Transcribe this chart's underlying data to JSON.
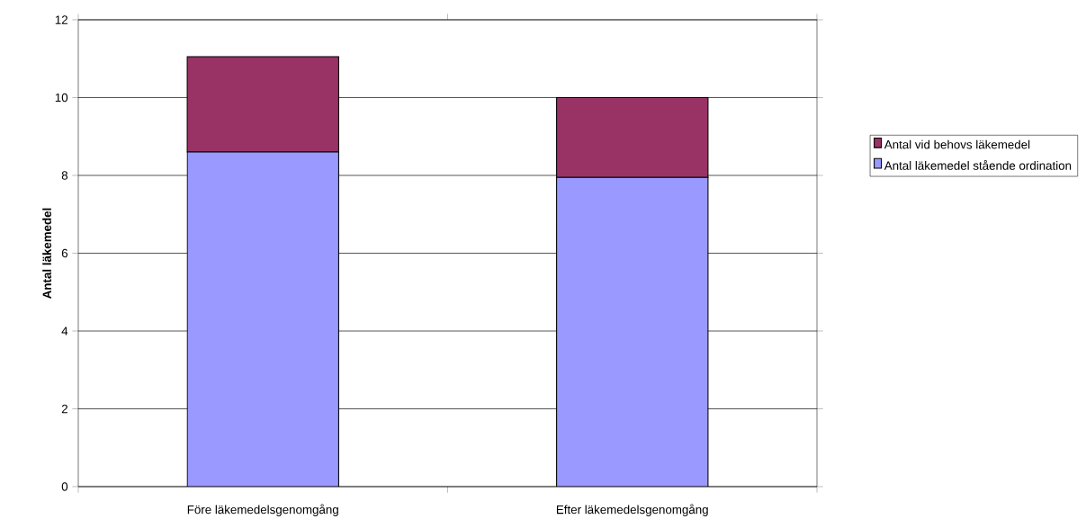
{
  "chart_data": {
    "type": "bar",
    "stacked": true,
    "ylabel": "Antal läkemedel",
    "categories": [
      "Före läkemedelsgenomgång",
      "Efter läkemedelsgenomgång"
    ],
    "series": [
      {
        "name": "Antal läkemedel stående ordination",
        "color": "#9999ff",
        "values": [
          8.6,
          7.95
        ]
      },
      {
        "name": "Antal vid behovs läkemedel",
        "color": "#993366",
        "values": [
          2.45,
          2.05
        ]
      }
    ],
    "ylim": [
      0,
      12
    ],
    "yticks": [
      0,
      2,
      4,
      6,
      8,
      10,
      12
    ],
    "grid": "y",
    "legend": "right"
  }
}
